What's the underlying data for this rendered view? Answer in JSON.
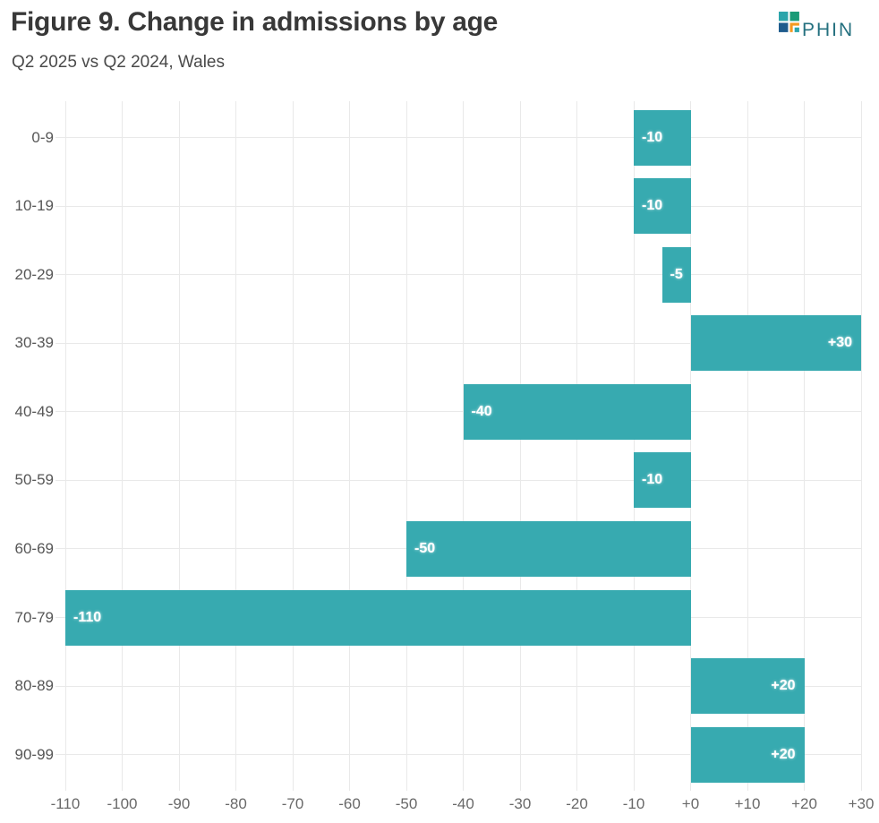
{
  "header": {
    "title": "Figure 9. Change in admissions by age",
    "subtitle": "Q2 2025 vs Q2 2024, Wales",
    "logo_text": "PHIN"
  },
  "chart_data": {
    "type": "bar",
    "orientation": "horizontal",
    "title": "Figure 9. Change in admissions by age",
    "subtitle": "Q2 2025 vs Q2 2024, Wales",
    "categories": [
      "0-9",
      "10-19",
      "20-29",
      "30-39",
      "40-49",
      "50-59",
      "60-69",
      "70-79",
      "80-89",
      "90-99"
    ],
    "values": [
      -10,
      -10,
      -5,
      30,
      -40,
      -10,
      -50,
      -110,
      20,
      20
    ],
    "bar_labels": [
      "-10",
      "-10",
      "-5",
      "+30",
      "-40",
      "-10",
      "-50",
      "-110",
      "+20",
      "+20"
    ],
    "xlim": [
      -110,
      30
    ],
    "xticks": [
      -110,
      -100,
      -90,
      -80,
      -70,
      -60,
      -50,
      -40,
      -30,
      -20,
      -10,
      0,
      10,
      20,
      30
    ],
    "xtick_labels": [
      "-110",
      "-100",
      "-90",
      "-80",
      "-70",
      "-60",
      "-50",
      "-40",
      "-30",
      "-20",
      "-10",
      "+0",
      "+10",
      "+20",
      "+30"
    ],
    "xlabel": "",
    "ylabel": "",
    "grid": true,
    "legend": false,
    "colors": {
      "bar": "#37aab0",
      "grid": "#e9e9e9",
      "bar_label": "#ffffff",
      "y_label": "#565656",
      "x_label": "#696969",
      "title": "#383838",
      "subtitle": "#4a4a4a",
      "logo_teal": "#2ca5ab",
      "logo_green": "#1b9b77",
      "logo_blue": "#1e5c8d",
      "logo_orange": "#f5991f",
      "logo_text": "#24707f"
    }
  }
}
